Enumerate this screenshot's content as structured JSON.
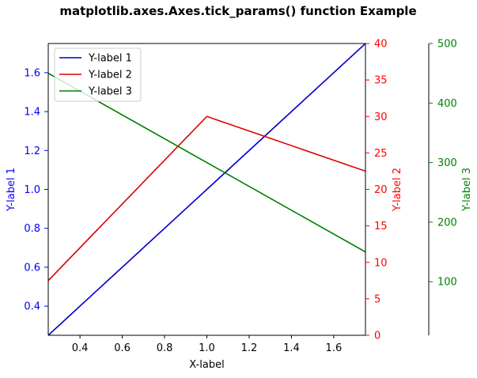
{
  "chart_data": {
    "type": "line",
    "title": "matplotlib.axes.Axes.tick_params() function Example",
    "xlabel": "X-label",
    "xlim": [
      0.25,
      1.75
    ],
    "xticks": [
      0.4,
      0.6,
      0.8,
      1.0,
      1.2,
      1.4,
      1.6
    ],
    "xtick_labels": [
      "0.4",
      "0.6",
      "0.8",
      "1.0",
      "1.2",
      "1.4",
      "1.6"
    ],
    "legend_position": "upper-left",
    "grid": false,
    "axes": [
      {
        "id": "y1",
        "label": "Y-label 1",
        "color": "#0000ff",
        "side": "left",
        "ylim": [
          0.25,
          1.75
        ],
        "ticks": [
          0.4,
          0.6,
          0.8,
          1.0,
          1.2,
          1.4,
          1.6
        ],
        "tick_labels": [
          "0.4",
          "0.6",
          "0.8",
          "1.0",
          "1.2",
          "1.4",
          "1.6"
        ]
      },
      {
        "id": "y2",
        "label": "Y-label 2",
        "color": "#ff0000",
        "side": "right",
        "ylim": [
          0,
          40
        ],
        "ticks": [
          0,
          5,
          10,
          15,
          20,
          25,
          30,
          35,
          40
        ],
        "tick_labels": [
          "0",
          "5",
          "10",
          "15",
          "20",
          "25",
          "30",
          "35",
          "40"
        ]
      },
      {
        "id": "y3",
        "label": "Y-label 3",
        "color": "#008000",
        "side": "right-offset",
        "ylim": [
          10,
          500
        ],
        "ticks": [
          100,
          200,
          300,
          400,
          500
        ],
        "tick_labels": [
          "100",
          "200",
          "300",
          "400",
          "500"
        ]
      }
    ],
    "series": [
      {
        "name": "Y-label 1",
        "axis": "y1",
        "color": "#0000cc",
        "x": [
          0,
          1,
          2
        ],
        "y": [
          0,
          1,
          2
        ]
      },
      {
        "name": "Y-label 2",
        "axis": "y2",
        "color": "#dd0000",
        "x": [
          0,
          1,
          2
        ],
        "y": [
          0,
          30,
          20
        ]
      },
      {
        "name": "Y-label 3",
        "axis": "y3",
        "color": "#008000",
        "x": [
          0,
          1,
          2
        ],
        "y": [
          500,
          300,
          100
        ]
      }
    ]
  }
}
